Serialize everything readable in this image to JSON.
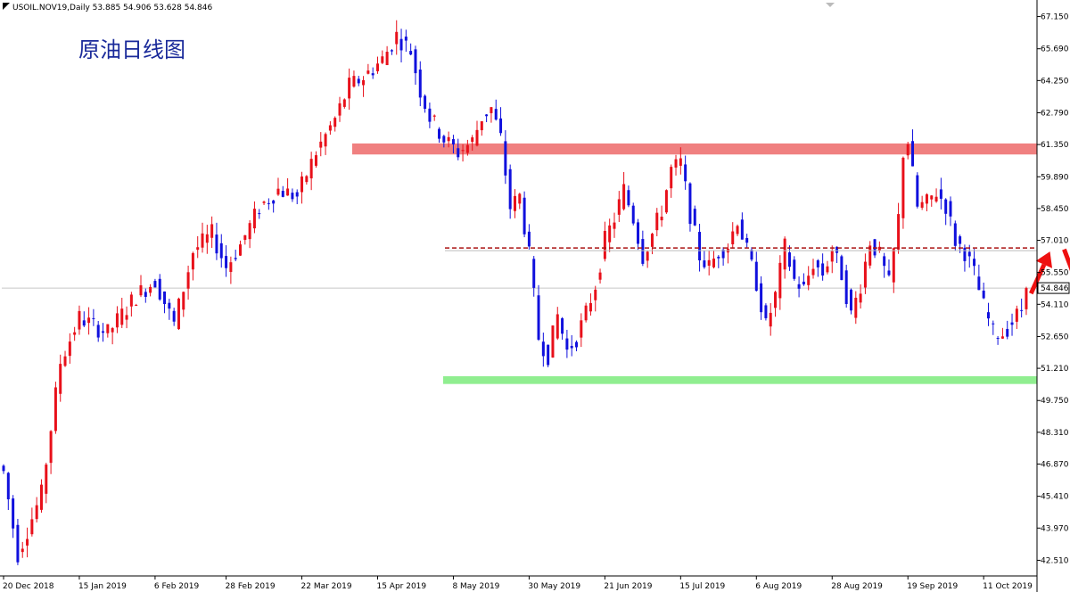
{
  "chart_header": "USOIL.NOV19,Daily  53.885 54.906 53.628 54.846",
  "chart_data": {
    "type": "candlestick",
    "title": "原油日线图",
    "symbol": "USOIL.NOV19",
    "timeframe": "Daily",
    "ohlc_header": {
      "open": 53.885,
      "high": 54.906,
      "low": 53.628,
      "close": 54.846
    },
    "current_price_label": "54.846",
    "current_price": 54.846,
    "ylim": [
      41.8,
      67.9
    ],
    "y_ticks": [
      67.15,
      65.69,
      64.25,
      62.79,
      61.35,
      59.89,
      58.45,
      57.01,
      55.55,
      54.11,
      52.65,
      51.21,
      49.75,
      48.31,
      46.87,
      45.41,
      43.97,
      42.51
    ],
    "y_tick_labels": [
      "67.150",
      "65.690",
      "64.250",
      "62.790",
      "61.350",
      "59.890",
      "58.450",
      "57.010",
      "55.550",
      "54.110",
      "52.650",
      "51.210",
      "49.750",
      "48.310",
      "46.870",
      "45.410",
      "43.970",
      "42.510"
    ],
    "x_ticks": [
      {
        "label": "20 Dec 2018",
        "bar": 0
      },
      {
        "label": "15 Jan 2019",
        "bar": 16
      },
      {
        "label": "6 Feb 2019",
        "bar": 32
      },
      {
        "label": "28 Feb 2019",
        "bar": 47
      },
      {
        "label": "22 Mar 2019",
        "bar": 63
      },
      {
        "label": "15 Apr 2019",
        "bar": 79
      },
      {
        "label": "8 May 2019",
        "bar": 95
      },
      {
        "label": "30 May 2019",
        "bar": 111
      },
      {
        "label": "21 Jun 2019",
        "bar": 127
      },
      {
        "label": "15 Jul 2019",
        "bar": 143
      },
      {
        "label": "6 Aug 2019",
        "bar": 159
      },
      {
        "label": "28 Aug 2019",
        "bar": 175
      },
      {
        "label": "19 Sep 2019",
        "bar": 191
      },
      {
        "label": "11 Oct 2019",
        "bar": 207
      }
    ],
    "key_points": [
      [
        0,
        46.5
      ],
      [
        3,
        42.8
      ],
      [
        8,
        45.5
      ],
      [
        12,
        51.5
      ],
      [
        16,
        53.5
      ],
      [
        22,
        52.8
      ],
      [
        28,
        54.5
      ],
      [
        32,
        55.2
      ],
      [
        36,
        53.2
      ],
      [
        40,
        56.5
      ],
      [
        44,
        57.3
      ],
      [
        47,
        55.8
      ],
      [
        50,
        56.8
      ],
      [
        54,
        58.5
      ],
      [
        58,
        59.3
      ],
      [
        62,
        59.0
      ],
      [
        66,
        61.0
      ],
      [
        70,
        62.5
      ],
      [
        73,
        64.0
      ],
      [
        76,
        64.4
      ],
      [
        80,
        65.2
      ],
      [
        83,
        66.3
      ],
      [
        86,
        65.6
      ],
      [
        88,
        63.8
      ],
      [
        90,
        62.6
      ],
      [
        93,
        61.6
      ],
      [
        96,
        61.0
      ],
      [
        99,
        61.5
      ],
      [
        101,
        62.6
      ],
      [
        103,
        63.0
      ],
      [
        105,
        61.6
      ],
      [
        107,
        58.5
      ],
      [
        109,
        59.0
      ],
      [
        111,
        56.3
      ],
      [
        113,
        52.6
      ],
      [
        115,
        51.8
      ],
      [
        117,
        53.6
      ],
      [
        119,
        52.0
      ],
      [
        121,
        52.6
      ],
      [
        123,
        53.7
      ],
      [
        125,
        55.0
      ],
      [
        127,
        57.0
      ],
      [
        129,
        58.0
      ],
      [
        131,
        59.3
      ],
      [
        133,
        58.0
      ],
      [
        135,
        56.3
      ],
      [
        137,
        57.3
      ],
      [
        139,
        58.4
      ],
      [
        141,
        60.2
      ],
      [
        143,
        60.5
      ],
      [
        145,
        58.2
      ],
      [
        147,
        56.3
      ],
      [
        149,
        55.8
      ],
      [
        151,
        56.5
      ],
      [
        153,
        56.8
      ],
      [
        155,
        58.0
      ],
      [
        157,
        56.5
      ],
      [
        159,
        55.1
      ],
      [
        161,
        53.1
      ],
      [
        163,
        54.5
      ],
      [
        165,
        56.7
      ],
      [
        167,
        55.2
      ],
      [
        169,
        54.8
      ],
      [
        171,
        56.0
      ],
      [
        173,
        55.5
      ],
      [
        175,
        56.6
      ],
      [
        177,
        55.5
      ],
      [
        179,
        53.6
      ],
      [
        181,
        55.0
      ],
      [
        183,
        57.0
      ],
      [
        185,
        56.3
      ],
      [
        187,
        55.0
      ],
      [
        189,
        58.0
      ],
      [
        190,
        61.0
      ],
      [
        191,
        61.5
      ],
      [
        193,
        58.5
      ],
      [
        195,
        58.7
      ],
      [
        197,
        59.2
      ],
      [
        199,
        58.6
      ],
      [
        201,
        57.0
      ],
      [
        203,
        56.5
      ],
      [
        205,
        55.5
      ],
      [
        207,
        54.0
      ],
      [
        209,
        52.8
      ],
      [
        211,
        52.8
      ],
      [
        213,
        53.3
      ],
      [
        215,
        53.9
      ],
      [
        216,
        54.846
      ]
    ],
    "resistance_zone": {
      "from": 60.9,
      "to": 61.4,
      "color": "#f08080"
    },
    "support_zone": {
      "from": 50.5,
      "to": 50.85,
      "color": "#90ee90"
    },
    "dashed_level": {
      "value": 56.6,
      "color": "#aa1111"
    },
    "forecast_arrows": [
      {
        "from_bar": 217,
        "from_price": 54.6,
        "to_bar": 221,
        "to_price": 56.5
      },
      {
        "from_bar": 224,
        "from_price": 56.6,
        "to_bar": 230,
        "to_price": 53.2
      }
    ],
    "colors": {
      "up": "#e8101a",
      "down": "#1010dd",
      "forecast": "#ee1111",
      "grid": "#e6e6e6"
    }
  }
}
